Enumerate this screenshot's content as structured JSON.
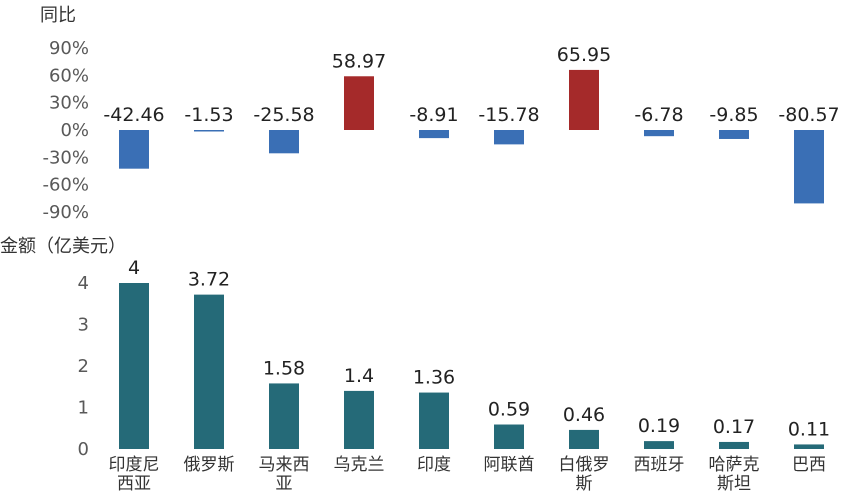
{
  "chart_data": [
    {
      "type": "bar",
      "ylabel": "同比",
      "categories": [
        "印度尼西亚",
        "俄罗斯",
        "马来西亚",
        "乌克兰",
        "印度",
        "阿联酋",
        "白俄罗斯",
        "西班牙",
        "哈萨克斯坦",
        "巴西"
      ],
      "values": [
        -42.46,
        -1.53,
        -25.58,
        58.97,
        -8.91,
        -15.78,
        65.95,
        -6.78,
        -9.85,
        -80.57
      ],
      "data_labels": [
        "-42.46",
        "-1.53",
        "-25.58",
        "58.97",
        "-8.91",
        "-15.78",
        "65.95",
        "-6.78",
        "-9.85",
        "-80.57"
      ],
      "yticks": [
        "90%",
        "60%",
        "30%",
        "0%",
        "-30%",
        "-60%",
        "-90%"
      ],
      "ytick_values": [
        90,
        60,
        30,
        0,
        -30,
        -60,
        -90
      ],
      "ylim": [
        -90,
        90
      ],
      "colors": {
        "positive": "#a52a2a",
        "negative": "#3a6fb5"
      },
      "grid": false,
      "legend": "none"
    },
    {
      "type": "bar",
      "ylabel": "金额（亿美元）",
      "categories": [
        "印度尼西亚",
        "俄罗斯",
        "马来西亚",
        "乌克兰",
        "印度",
        "阿联酋",
        "白俄罗斯",
        "西班牙",
        "哈萨克斯坦",
        "巴西"
      ],
      "category_lines": [
        [
          "印度尼",
          "西亚"
        ],
        [
          "俄罗斯"
        ],
        [
          "马来西",
          "亚"
        ],
        [
          "乌克兰"
        ],
        [
          "印度"
        ],
        [
          "阿联酋"
        ],
        [
          "白俄罗",
          "斯"
        ],
        [
          "西班牙"
        ],
        [
          "哈萨克",
          "斯坦"
        ],
        [
          "巴西"
        ]
      ],
      "values": [
        4,
        3.72,
        1.58,
        1.4,
        1.36,
        0.59,
        0.46,
        0.19,
        0.17,
        0.11
      ],
      "data_labels": [
        "4",
        "3.72",
        "1.58",
        "1.4",
        "1.36",
        "0.59",
        "0.46",
        "0.19",
        "0.17",
        "0.11"
      ],
      "yticks": [
        "4",
        "3",
        "2",
        "1",
        "0"
      ],
      "ytick_values": [
        4,
        3,
        2,
        1,
        0
      ],
      "ylim": [
        0,
        4
      ],
      "colors": {
        "bar": "#256a78"
      },
      "grid": false,
      "legend": "none"
    }
  ]
}
